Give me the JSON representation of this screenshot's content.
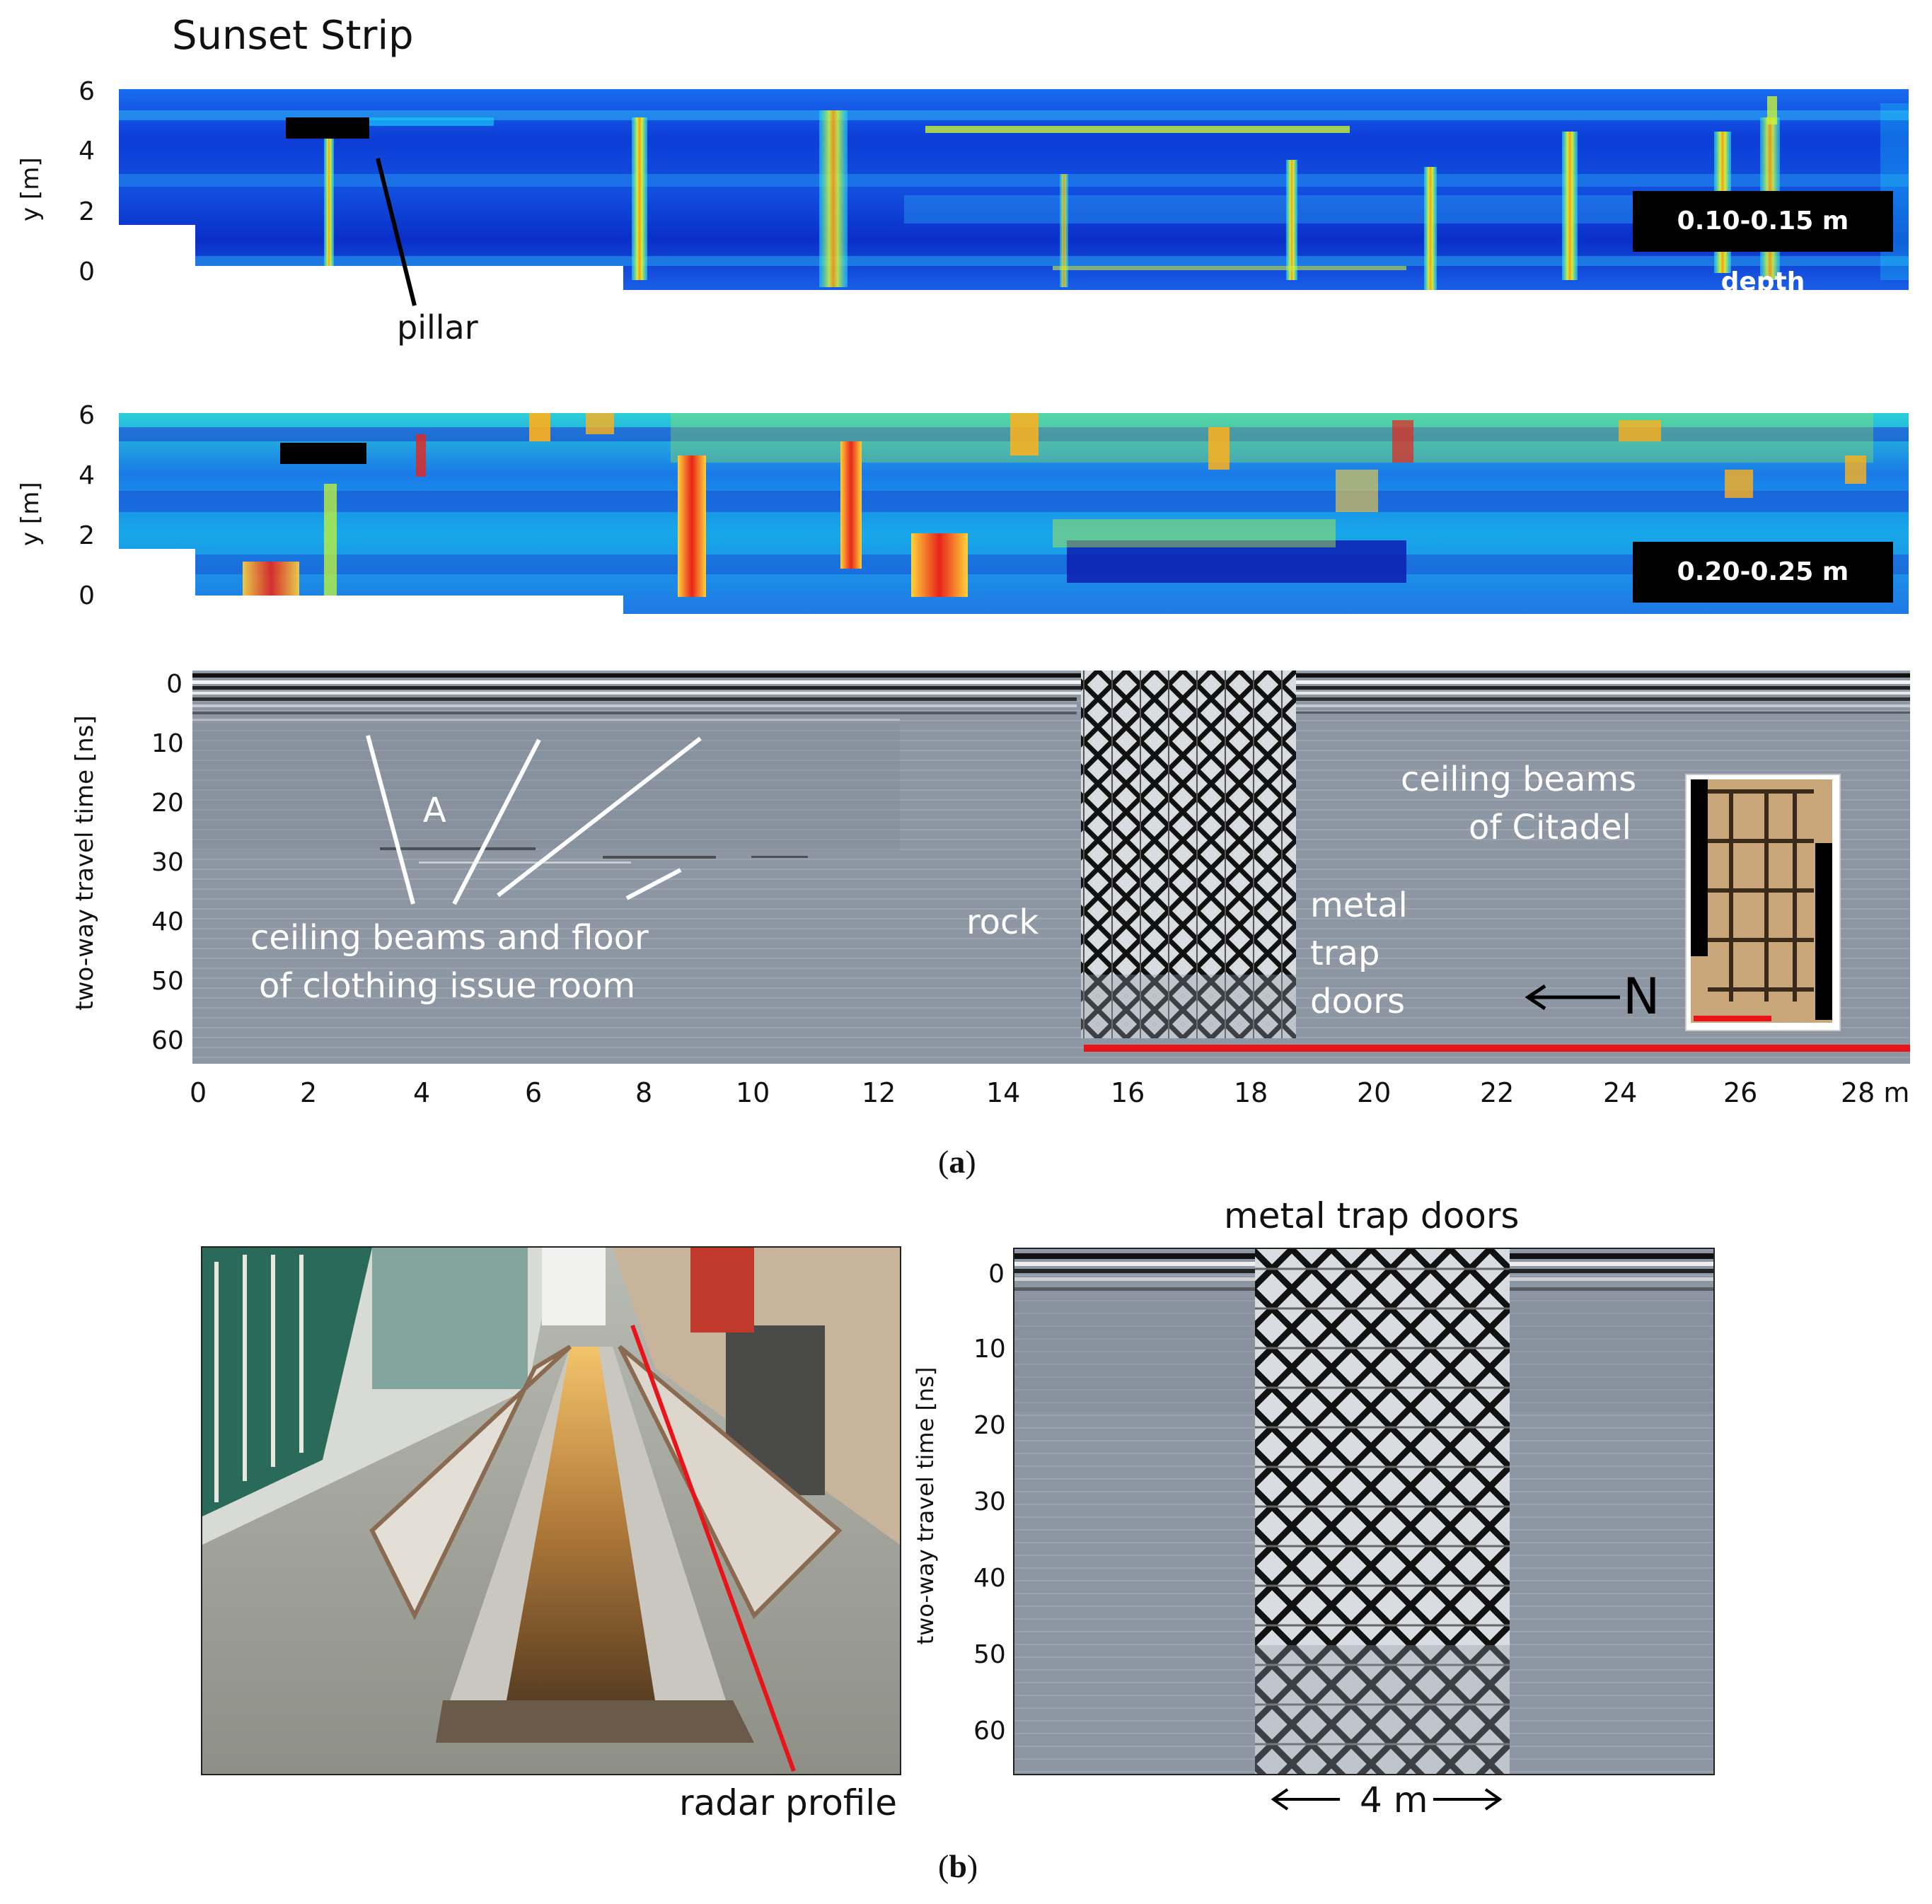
{
  "figure_title": "Sunset Strip",
  "map1": {
    "depth_label": "0.10-0.15 m depth",
    "y_axis_label": "y [m]",
    "y_ticks": [
      "6",
      "4",
      "2",
      "0"
    ],
    "annotation": "pillar"
  },
  "map2": {
    "depth_label": "0.20-0.25 m depth",
    "y_axis_label": "y [m]",
    "y_ticks": [
      "6",
      "4",
      "2",
      "0"
    ]
  },
  "profile_a": {
    "y_axis_label": "two-way travel time [ns]",
    "y_ticks": [
      "0",
      "10",
      "20",
      "30",
      "40",
      "50",
      "60"
    ],
    "x_ticks": [
      "0",
      "2",
      "4",
      "6",
      "8",
      "10",
      "12",
      "14",
      "16",
      "18",
      "20",
      "22",
      "24",
      "26",
      "28 m"
    ],
    "label_A": "A",
    "label_ceiling_floor_1": "ceiling beams and floor",
    "label_ceiling_floor_2": "of clothing issue room",
    "label_rock": "rock",
    "label_metal_1": "metal",
    "label_metal_2": "trap",
    "label_metal_3": "doors",
    "label_citadel_1": "ceiling beams",
    "label_citadel_2": "of Citadel",
    "north_label": "N"
  },
  "caption_a": {
    "open": "(",
    "letter": "a",
    "close": ")"
  },
  "panel_b": {
    "photo_label": "radar profile",
    "profile_title": "metal trap doors",
    "y_axis_label": "two-way travel time [ns]",
    "y_ticks": [
      "0",
      "10",
      "20",
      "30",
      "40",
      "50",
      "60"
    ],
    "scale_label": "4 m"
  },
  "caption_b": {
    "open": "(",
    "letter": "b",
    "close": ")"
  },
  "colors": {
    "red_line": "#e8141a",
    "gpr_gray": "#8d97a3",
    "heat_dark": "#0a1fb8"
  }
}
